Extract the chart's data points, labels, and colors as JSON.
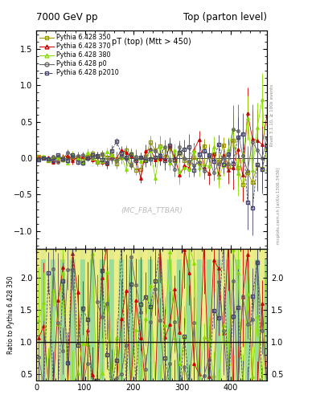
{
  "title_left": "7000 GeV pp",
  "title_right": "Top (parton level)",
  "plot_title": "pT (top) (Mtt > 450)",
  "watermark": "(MC_FBA_TTBAR)",
  "right_label1": "Rivet 3.1.10, ≥ 100k events",
  "right_label2": "mcplots.cern.ch [arXiv:1306.3436]",
  "ylabel_ratio": "Ratio to Pythia 6.428 350",
  "xlim": [
    0,
    475
  ],
  "ylim_main": [
    -1.25,
    1.75
  ],
  "ylim_ratio": [
    0.4,
    2.45
  ],
  "yticks_main": [
    -1.0,
    -0.5,
    0.0,
    0.5,
    1.0,
    1.5
  ],
  "yticks_ratio": [
    0.5,
    1.0,
    1.5,
    2.0
  ],
  "series": [
    {
      "label": "Pythia 6.428 350",
      "color": "#999900",
      "marker": "s",
      "linestyle": "-"
    },
    {
      "label": "Pythia 6.428 370",
      "color": "#cc0000",
      "marker": "^",
      "linestyle": "-"
    },
    {
      "label": "Pythia 6.428 380",
      "color": "#88dd00",
      "marker": "^",
      "linestyle": "-"
    },
    {
      "label": "Pythia 6.428 p0",
      "color": "#666666",
      "marker": "o",
      "linestyle": "-"
    },
    {
      "label": "Pythia 6.428 p2010",
      "color": "#444466",
      "marker": "s",
      "linestyle": "--"
    }
  ],
  "bg_green": "#99dd99",
  "bg_yellow": "#eeee88",
  "n_bins": 50,
  "xmin": 0,
  "xmax": 500
}
